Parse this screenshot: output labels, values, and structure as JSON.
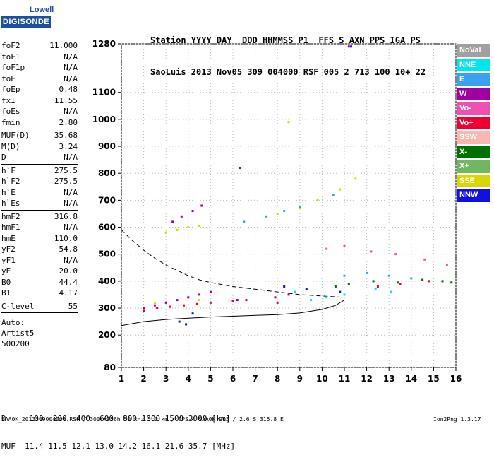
{
  "logo": {
    "top": "Lowell",
    "bottom": "DIGISONDE"
  },
  "header": {
    "line1": "Station YYYY DAY  DDD HHMMSS P1  FFS S AXN PPS IGA PS",
    "line2": "SaoLuis 2013 Nov05 309 004000 RSF 005 2 713 100 10+ 22"
  },
  "params": {
    "group1": [
      {
        "name": "foF2",
        "value": "11.000"
      },
      {
        "name": "foF1",
        "value": "N/A"
      },
      {
        "name": "foF1p",
        "value": "N/A"
      },
      {
        "name": "foE",
        "value": "N/A"
      },
      {
        "name": "foEp",
        "value": "0.48"
      },
      {
        "name": "fxI",
        "value": "11.55"
      },
      {
        "name": "foEs",
        "value": "N/A"
      },
      {
        "name": "fmin",
        "value": "2.80"
      }
    ],
    "group2": [
      {
        "name": "MUF(D)",
        "value": "35.68"
      },
      {
        "name": "M(D)",
        "value": "3.24"
      },
      {
        "name": "D",
        "value": "N/A"
      }
    ],
    "group3": [
      {
        "name": "h`F",
        "value": "275.5"
      },
      {
        "name": "h`F2",
        "value": "275.5"
      },
      {
        "name": "h`E",
        "value": "N/A"
      },
      {
        "name": "h`Es",
        "value": "N/A"
      }
    ],
    "group4": [
      {
        "name": "hmF2",
        "value": "316.8"
      },
      {
        "name": "hmF1",
        "value": "N/A"
      },
      {
        "name": "hmE",
        "value": "110.0"
      },
      {
        "name": "yF2",
        "value": "54.8"
      },
      {
        "name": "yF1",
        "value": "N/A"
      },
      {
        "name": "yE",
        "value": "20.0"
      },
      {
        "name": "B0",
        "value": "44.4"
      },
      {
        "name": "B1",
        "value": "4.17"
      }
    ],
    "group5": [
      {
        "name": "C-level",
        "value": "55"
      }
    ],
    "auto": [
      "Auto:",
      "Artist5",
      "500200"
    ]
  },
  "legend": [
    {
      "label": "NoVal",
      "color": "#a0a0a0"
    },
    {
      "label": "NNE",
      "color": "#00e5ee"
    },
    {
      "label": "E",
      "color": "#3aa0f0"
    },
    {
      "label": "W",
      "color": "#a000a0"
    },
    {
      "label": "Vo-",
      "color": "#f050b0"
    },
    {
      "label": "Vo+",
      "color": "#f00030"
    },
    {
      "label": "SSW",
      "color": "#f8b8b0"
    },
    {
      "label": "X-",
      "color": "#007000"
    },
    {
      "label": "X+",
      "color": "#70b860"
    },
    {
      "label": "SSE",
      "color": "#d8d800"
    },
    {
      "label": "NNW",
      "color": "#1010e0"
    }
  ],
  "chart_data": {
    "type": "scatter",
    "xlabel": "",
    "ylabel": "",
    "xlim": [
      1,
      16
    ],
    "ylim": [
      80,
      1280
    ],
    "x_ticks": [
      1,
      2,
      3,
      4,
      5,
      6,
      7,
      8,
      9,
      10,
      11,
      12,
      13,
      14,
      15,
      16
    ],
    "y_ticks": [
      80,
      200,
      300,
      400,
      500,
      600,
      700,
      800,
      900,
      1000,
      1100,
      1280
    ],
    "series": [
      {
        "color": "#a000a0",
        "points": [
          [
            2.0,
            300
          ],
          [
            2.5,
            310
          ],
          [
            3.0,
            320
          ],
          [
            3.5,
            330
          ],
          [
            4.0,
            340
          ],
          [
            4.5,
            350
          ],
          [
            5.0,
            360
          ],
          [
            3.3,
            620
          ],
          [
            3.7,
            640
          ],
          [
            4.2,
            660
          ],
          [
            4.6,
            680
          ],
          [
            6.2,
            330
          ],
          [
            7.9,
            340
          ],
          [
            8.5,
            350
          ],
          [
            11.2,
            1270
          ]
        ]
      },
      {
        "color": "#f00030",
        "points": [
          [
            2.0,
            290
          ],
          [
            2.6,
            300
          ],
          [
            3.2,
            305
          ],
          [
            3.8,
            310
          ],
          [
            4.4,
            315
          ],
          [
            5.0,
            320
          ],
          [
            6.0,
            325
          ],
          [
            6.6,
            330
          ],
          [
            8.0,
            320
          ],
          [
            12.5,
            380
          ],
          [
            13.5,
            390
          ],
          [
            14.8,
            400
          ]
        ]
      },
      {
        "color": "#d8d800",
        "points": [
          [
            3.0,
            580
          ],
          [
            3.5,
            590
          ],
          [
            4.0,
            600
          ],
          [
            4.5,
            605
          ],
          [
            8.0,
            650
          ],
          [
            9.0,
            670
          ],
          [
            9.8,
            700
          ],
          [
            10.8,
            740
          ],
          [
            11.5,
            780
          ],
          [
            2.5,
            320
          ],
          [
            4.5,
            330
          ],
          [
            8.5,
            990
          ]
        ]
      },
      {
        "color": "#3aa0f0",
        "points": [
          [
            6.5,
            620
          ],
          [
            7.5,
            640
          ],
          [
            8.3,
            660
          ],
          [
            9.0,
            675
          ],
          [
            10.5,
            720
          ],
          [
            11.0,
            420
          ],
          [
            12.0,
            430
          ],
          [
            13.0,
            420
          ],
          [
            14.0,
            410
          ]
        ]
      },
      {
        "color": "#007000",
        "points": [
          [
            10.6,
            380
          ],
          [
            11.2,
            390
          ],
          [
            12.3,
            400
          ],
          [
            13.4,
            395
          ],
          [
            14.5,
            405
          ],
          [
            15.4,
            400
          ],
          [
            15.8,
            395
          ],
          [
            6.3,
            820
          ]
        ]
      },
      {
        "color": "#1010e0",
        "points": [
          [
            3.6,
            250
          ],
          [
            3.9,
            240
          ],
          [
            8.3,
            380
          ],
          [
            9.3,
            370
          ],
          [
            10.8,
            360
          ],
          [
            11.3,
            1270
          ],
          [
            4.2,
            280
          ]
        ]
      },
      {
        "color": "#00e5ee",
        "points": [
          [
            9.5,
            330
          ],
          [
            10.2,
            340
          ],
          [
            11.0,
            350
          ],
          [
            12.4,
            370
          ],
          [
            13.1,
            360
          ],
          [
            8.8,
            360
          ]
        ]
      },
      {
        "color": "#f050b0",
        "points": [
          [
            10.2,
            520
          ],
          [
            11.0,
            530
          ],
          [
            12.2,
            510
          ],
          [
            13.3,
            500
          ],
          [
            14.6,
            480
          ],
          [
            15.6,
            460
          ]
        ]
      }
    ],
    "curves": [
      {
        "name": "profile",
        "style": "dashed",
        "points": [
          [
            1.0,
            590
          ],
          [
            1.5,
            550
          ],
          [
            2.0,
            515
          ],
          [
            2.5,
            485
          ],
          [
            3.0,
            460
          ],
          [
            3.5,
            440
          ],
          [
            4.0,
            420
          ],
          [
            4.5,
            405
          ],
          [
            5.0,
            395
          ],
          [
            6.0,
            380
          ],
          [
            7.0,
            370
          ],
          [
            8.0,
            360
          ],
          [
            9.0,
            350
          ],
          [
            10.0,
            345
          ],
          [
            11.0,
            340
          ]
        ]
      },
      {
        "name": "trace",
        "style": "solid",
        "points": [
          [
            1.0,
            235
          ],
          [
            2.0,
            250
          ],
          [
            3.0,
            258
          ],
          [
            4.0,
            263
          ],
          [
            5.0,
            267
          ],
          [
            6.0,
            270
          ],
          [
            7.0,
            273
          ],
          [
            8.0,
            276
          ],
          [
            9.0,
            282
          ],
          [
            10.0,
            295
          ],
          [
            10.6,
            310
          ],
          [
            11.0,
            330
          ]
        ]
      }
    ]
  },
  "bottom": {
    "d_row": "D     100  200  400  600  800 1000 1500 3000 [km]",
    "muf_row": "MUF  11.4 11.5 12.1 13.0 14.2 16.1 21.6 35.7 [MHz]"
  },
  "footer": {
    "left": "SAA0K_2013309004000.RSF / 300fx256h 50 kHz 5.0 km / DPS-4 SAA0K 903 / 2.6 S 315.8 E",
    "right": "Ion2Png 1.3.17"
  }
}
